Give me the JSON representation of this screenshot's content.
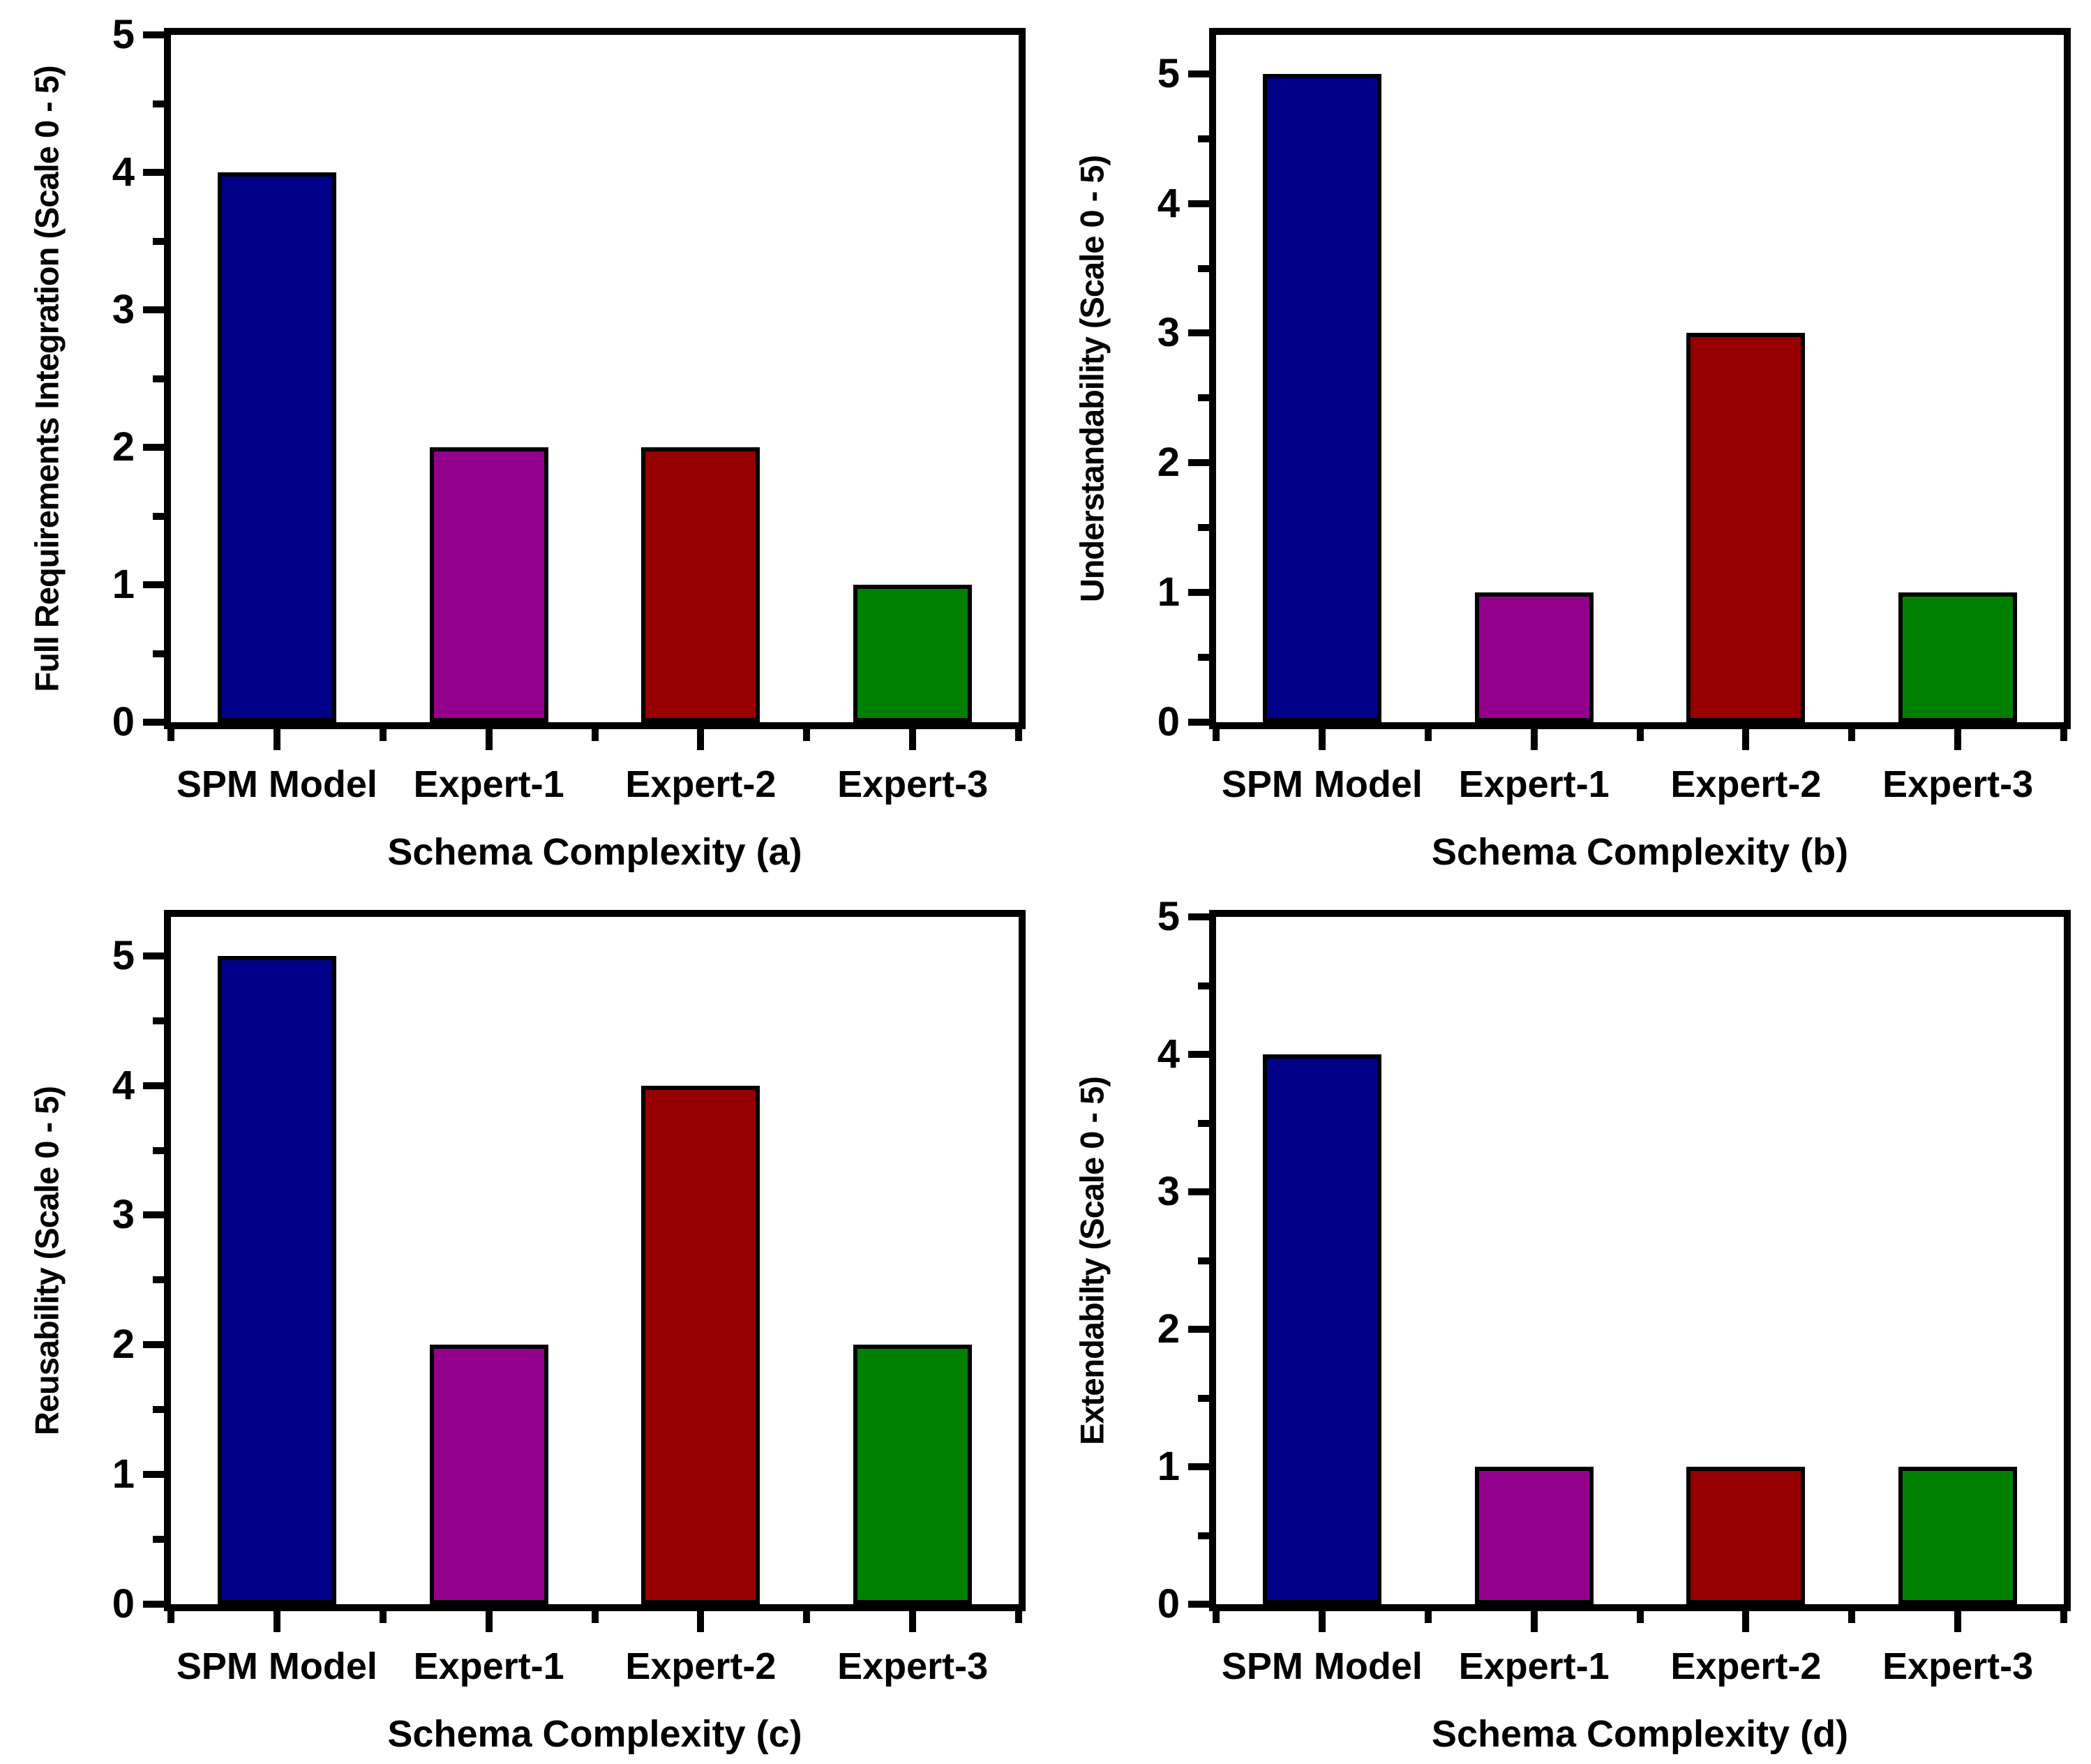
{
  "figure": {
    "background": "#ffffff",
    "bar_outline_color": "#000000",
    "axis_color": "#000000",
    "bar_colors": [
      "#000088",
      "#94008B",
      "#960000",
      "#008000"
    ],
    "bar_color_names": [
      "navy",
      "magenta",
      "dark-red",
      "green"
    ]
  },
  "chart_data": [
    {
      "type": "bar",
      "panel": "a",
      "ylabel": "Full Requirements Integration (Scale 0 - 5)",
      "xlabel": "Schema Complexity (a)",
      "categories": [
        "SPM Model",
        "Expert-1",
        "Expert-2",
        "Expert-3"
      ],
      "values": [
        4,
        2,
        2,
        1
      ],
      "ylim": [
        0,
        5
      ],
      "yticks": [
        0,
        1,
        2,
        3,
        4,
        5
      ],
      "grid": false,
      "legend": false
    },
    {
      "type": "bar",
      "panel": "b",
      "ylabel": "Understandability (Scale 0 - 5)",
      "xlabel": "Schema Complexity (b)",
      "categories": [
        "SPM Model",
        "Expert-1",
        "Expert-2",
        "Expert-3"
      ],
      "values": [
        5,
        1,
        3,
        1
      ],
      "ylim": [
        0,
        5.3
      ],
      "yticks": [
        0,
        1,
        2,
        3,
        4,
        5
      ],
      "grid": false,
      "legend": false
    },
    {
      "type": "bar",
      "panel": "c",
      "ylabel": "Reusability (Scale 0 - 5)",
      "xlabel": "Schema Complexity (c)",
      "categories": [
        "SPM Model",
        "Expert-1",
        "Expert-2",
        "Expert-3"
      ],
      "values": [
        5,
        2,
        4,
        2
      ],
      "ylim": [
        0,
        5.3
      ],
      "yticks": [
        0,
        1,
        2,
        3,
        4,
        5
      ],
      "grid": false,
      "legend": false
    },
    {
      "type": "bar",
      "panel": "d",
      "ylabel": "Extendabilty (Scale 0 - 5)",
      "xlabel": "Schema Complexity (d)",
      "categories": [
        "SPM Model",
        "Expert-1",
        "Expert-2",
        "Expert-3"
      ],
      "values": [
        4,
        1,
        1,
        1
      ],
      "ylim": [
        0,
        5
      ],
      "yticks": [
        0,
        1,
        2,
        3,
        4,
        5
      ],
      "grid": false,
      "legend": false
    }
  ]
}
